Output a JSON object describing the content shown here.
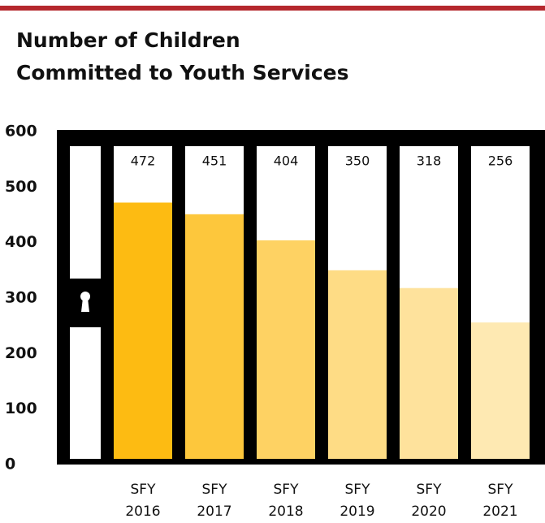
{
  "chart_data": {
    "type": "bar",
    "title": "Number of Children\nCommitted to Youth Services",
    "categories": [
      "SFY\n2016",
      "SFY\n2017",
      "SFY\n2018",
      "SFY\n2019",
      "SFY\n2020",
      "SFY\n2021"
    ],
    "values": [
      472,
      451,
      404,
      350,
      318,
      256
    ],
    "colors": [
      "#fdbb12",
      "#fdc73c",
      "#fed263",
      "#fedc85",
      "#fee29c",
      "#fee9b2"
    ],
    "ylim": [
      0,
      600
    ],
    "yticks": [
      0,
      100,
      200,
      300,
      400,
      500,
      600
    ]
  }
}
